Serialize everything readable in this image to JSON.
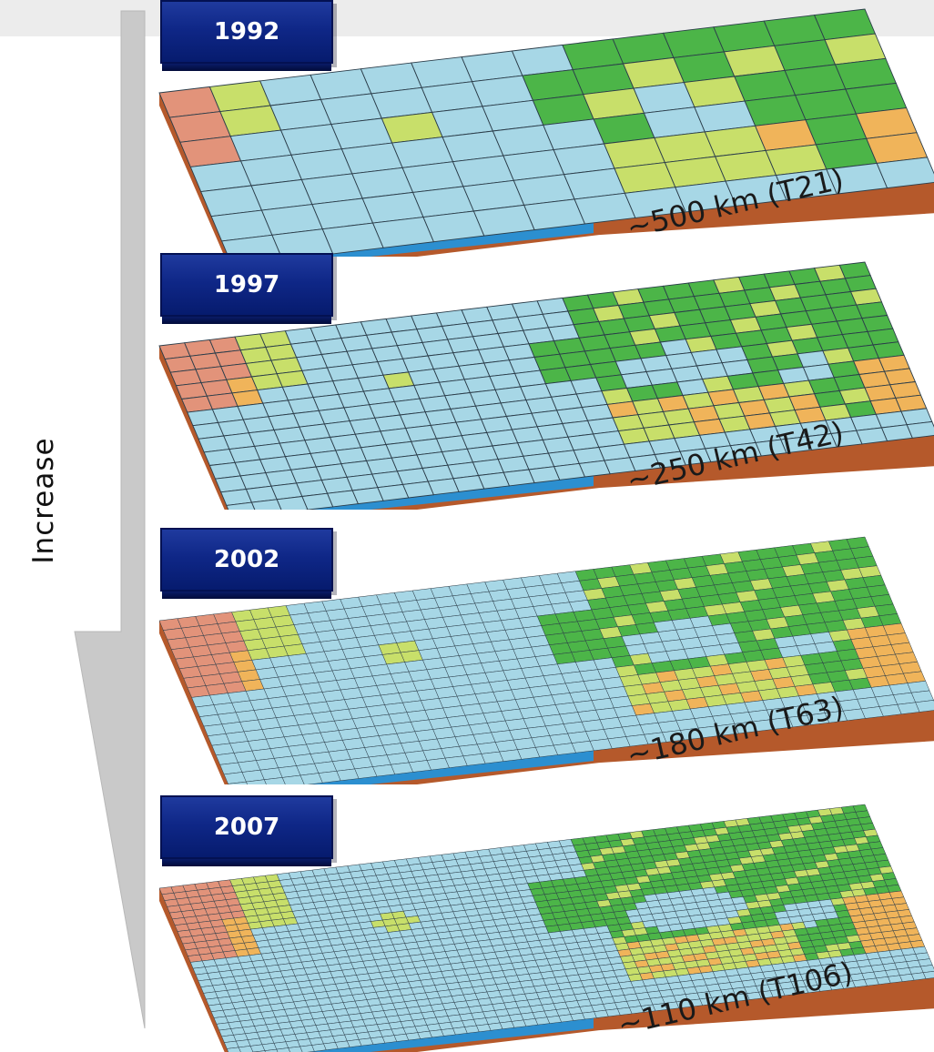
{
  "axis_label": "Increase",
  "panels": [
    {
      "year": "1992",
      "resolution": "~500 km (T21)",
      "cell_size": 56
    },
    {
      "year": "1997",
      "resolution": "~250 km (T42)",
      "cell_size": 28
    },
    {
      "year": "2002",
      "resolution": "~180 km (T63)",
      "cell_size": 20
    },
    {
      "year": "2007",
      "resolution": "~110 km (T106)",
      "cell_size": 13
    }
  ],
  "colors": {
    "ocean": "#a7d7e6",
    "ocean_side": "#2c8fd0",
    "land_low": "#4cb548",
    "land_mid": "#c8df6a",
    "land_high": "#f0b45a",
    "mountain": "#e2937a",
    "soil": "#b5592b",
    "badge": "#0f2787",
    "arrow": "#cfcfcf"
  }
}
